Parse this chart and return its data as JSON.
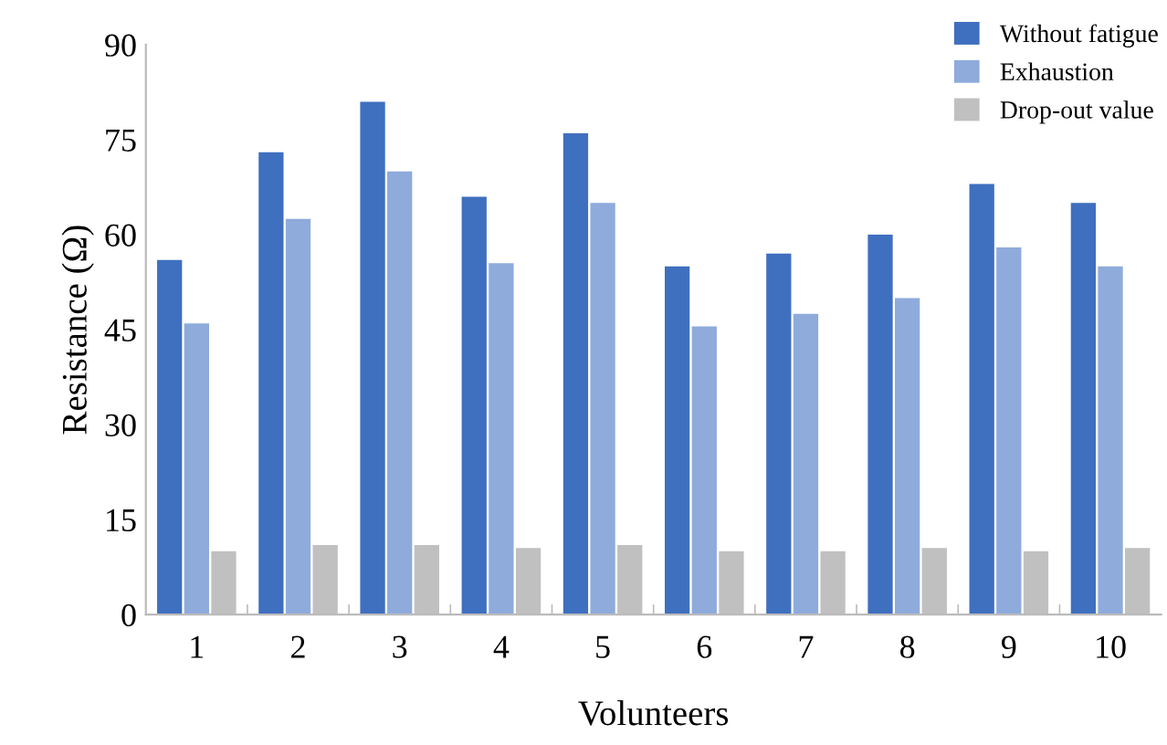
{
  "chart_data": {
    "type": "bar",
    "xlabel": "Volunteers",
    "ylabel": "Resistance (Ω)",
    "categories": [
      "1",
      "2",
      "3",
      "4",
      "5",
      "6",
      "7",
      "8",
      "9",
      "10"
    ],
    "series": [
      {
        "name": "Without fatigue",
        "color": "#3f6fbf",
        "values": [
          56,
          73,
          81,
          66,
          76,
          55,
          57,
          60,
          68,
          65
        ]
      },
      {
        "name": "Exhaustion",
        "color": "#8eabdc",
        "values": [
          46,
          62.5,
          70,
          55.5,
          65,
          45.5,
          47.5,
          50,
          58,
          55
        ]
      },
      {
        "name": "Drop-out value",
        "color": "#c0c0c0",
        "values": [
          10,
          11,
          11,
          10.5,
          11,
          10,
          10,
          10.5,
          10,
          10.5
        ]
      }
    ],
    "ylim": [
      0,
      90
    ],
    "yticks": [
      0,
      15,
      30,
      45,
      60,
      75,
      90
    ],
    "grid": false,
    "legend": "top right"
  }
}
